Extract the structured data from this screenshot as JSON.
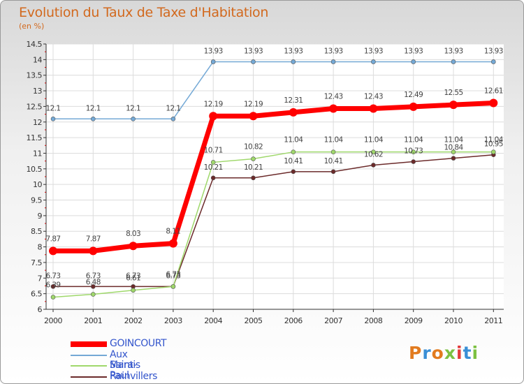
{
  "header": {
    "title": "Evolution du Taux de Taxe d'Habitation",
    "unit": "(en %)"
  },
  "brand": {
    "text": "Proxiti",
    "colors": [
      "#e27b1f",
      "#3a8fd6",
      "#e27b1f",
      "#7cc142",
      "#e33a3a",
      "#3a8fd6",
      "#7cc142"
    ]
  },
  "chart_data": {
    "type": "line",
    "title": "Evolution du Taux de Taxe d'Habitation",
    "ylabel": "(en %)",
    "xlabel": "",
    "ylim": [
      6,
      14.5
    ],
    "grid": true,
    "legend_position": "bottom-left",
    "categories": [
      "2000",
      "2001",
      "2002",
      "2003",
      "2004",
      "2005",
      "2006",
      "2007",
      "2008",
      "2009",
      "2010",
      "2011"
    ],
    "y_ticks": [
      "6",
      "6.5",
      "7",
      "7.5",
      "8",
      "8.5",
      "9",
      "9.5",
      "10",
      "10.5",
      "11",
      "11.5",
      "12",
      "12.5",
      "13",
      "13.5",
      "14",
      "14.5"
    ],
    "series": [
      {
        "name": "GOINCOURT",
        "color": "#ff0000",
        "values": [
          7.87,
          7.87,
          8.03,
          8.11,
          12.19,
          12.19,
          12.31,
          12.43,
          12.43,
          12.49,
          12.55,
          12.61
        ],
        "labels": [
          "7.87",
          "7.87",
          "8.03",
          "8.11",
          "12.19",
          "12.19",
          "12.31",
          "12.43",
          "12.43",
          "12.49",
          "12.55",
          "12.61"
        ]
      },
      {
        "name": "Aux Marais",
        "color": "#74a9d6",
        "values": [
          12.1,
          12.1,
          12.1,
          12.1,
          13.93,
          13.93,
          13.93,
          13.93,
          13.93,
          13.93,
          13.93,
          13.93
        ],
        "labels": [
          "12.1",
          "12.1",
          "12.1",
          "12.1",
          "13.93",
          "13.93",
          "13.93",
          "13.93",
          "13.93",
          "13.93",
          "13.93",
          "13.93"
        ]
      },
      {
        "name": "Saint-Paul",
        "color": "#9fd86b",
        "values": [
          6.39,
          6.48,
          6.61,
          6.73,
          10.71,
          10.82,
          11.04,
          11.04,
          11.04,
          11.04,
          11.04,
          11.04
        ],
        "labels": [
          "6.39",
          "6.48",
          "6.61",
          "6.73",
          "10.71",
          "10.82",
          "11.04",
          "11.04",
          "11.04",
          "11.04",
          "11.04",
          "11.04"
        ]
      },
      {
        "name": "Rainvillers",
        "color": "#6b2a2a",
        "values": [
          6.73,
          6.73,
          6.73,
          6.73,
          10.21,
          10.21,
          10.41,
          10.41,
          10.62,
          10.73,
          10.84,
          10.95
        ],
        "labels": [
          "6.73",
          "6.73",
          "6.73",
          "6.73",
          "10.21",
          "10.21",
          "10.41",
          "10.41",
          "10.62",
          "10.73",
          "10.84",
          "10.95"
        ]
      }
    ]
  }
}
